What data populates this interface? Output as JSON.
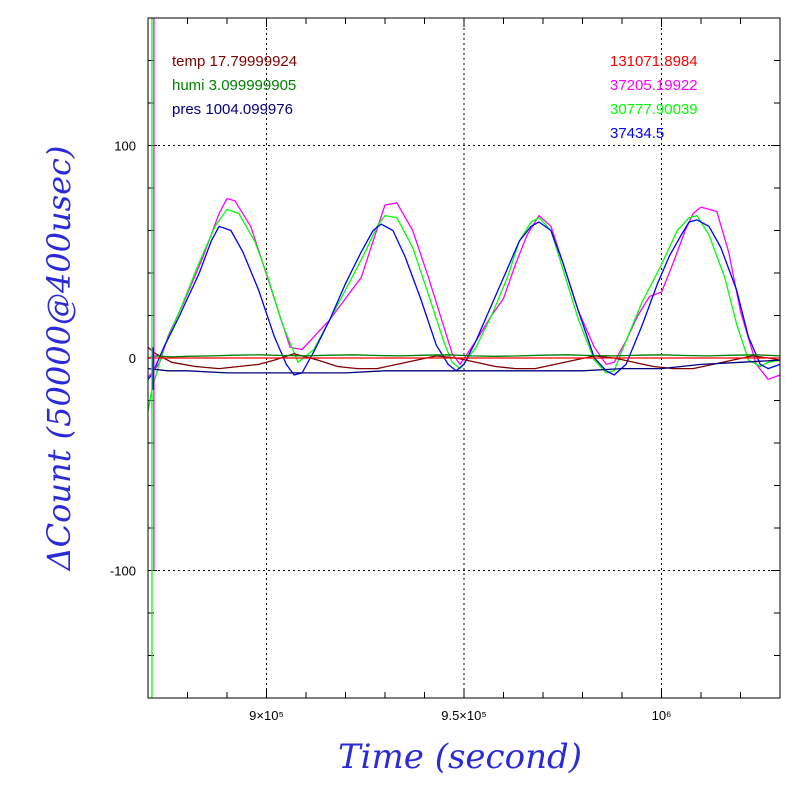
{
  "chart_data": {
    "type": "line",
    "xlabel": "Time (second)",
    "ylabel": "ΔCount (50000@400usec)",
    "xlim": [
      870000,
      1030000
    ],
    "ylim": [
      -160,
      160
    ],
    "grid": true,
    "x_ticks": [
      {
        "value": 900000,
        "label": "9×10⁵"
      },
      {
        "value": 950000,
        "label": "9.5×10⁵"
      },
      {
        "value": 1000000,
        "label": "10⁶"
      }
    ],
    "y_ticks": [
      {
        "value": 100,
        "label": "100"
      },
      {
        "value": 0,
        "label": "0"
      },
      {
        "value": -100,
        "label": "-100"
      }
    ],
    "legend_left": [
      {
        "label": "temp 17.79999924",
        "color": "#800000"
      },
      {
        "label": "humi 3.099999905",
        "color": "#008000"
      },
      {
        "label": "pres 1004.099976",
        "color": "#000080"
      }
    ],
    "legend_right": [
      {
        "label": "131071.8984",
        "color": "#ff0000"
      },
      {
        "label": "37205.19922",
        "color": "#ff00ff"
      },
      {
        "label": "30777.90039",
        "color": "#00ff00"
      },
      {
        "label": "37434.5",
        "color": "#0000ff"
      }
    ],
    "series": [
      {
        "color": "#ff00ff",
        "x": [
          870000,
          871000,
          873000,
          875000,
          879000,
          884000,
          888000,
          890000,
          892000,
          896000,
          899000,
          903000,
          906000,
          909000,
          912000,
          916000,
          920000,
          924000,
          927000,
          930000,
          933000,
          937000,
          941000,
          945000,
          947000,
          949000,
          953000,
          957000,
          960000,
          963000,
          966000,
          969000,
          972000,
          975000,
          979000,
          983000,
          986000,
          988000,
          991000,
          994000,
          997000,
          1000000,
          1003000,
          1006000,
          1008000,
          1010000,
          1014000,
          1017000,
          1020000,
          1024000,
          1027000,
          1030000
        ],
        "y": [
          -9,
          -7,
          -2,
          10,
          26,
          48,
          68,
          75,
          74,
          62,
          45,
          22,
          5,
          4,
          10,
          18,
          28,
          38,
          55,
          72,
          73,
          60,
          38,
          14,
          2,
          -3,
          8,
          20,
          28,
          44,
          58,
          67,
          62,
          45,
          22,
          5,
          -3,
          -2,
          8,
          20,
          29,
          31,
          45,
          60,
          68,
          71,
          69,
          50,
          22,
          -3,
          -10,
          -8
        ]
      },
      {
        "color": "#00ff00",
        "x": [
          870000,
          871000,
          874000,
          878000,
          883000,
          887000,
          890000,
          893000,
          897000,
          900000,
          904000,
          908000,
          912000,
          916000,
          920000,
          925000,
          928000,
          930000,
          933000,
          937000,
          941000,
          945000,
          947000,
          949000,
          953000,
          957000,
          961000,
          964000,
          967000,
          969000,
          972000,
          975000,
          979000,
          983000,
          986000,
          988000,
          991000,
          995000,
          1000000,
          1004000,
          1007000,
          1009000,
          1012000,
          1016000,
          1019000,
          1022000,
          1025000,
          1027000,
          1030000
        ],
        "y": [
          -25,
          -15,
          5,
          22,
          45,
          62,
          70,
          68,
          55,
          40,
          16,
          -2,
          4,
          18,
          32,
          50,
          62,
          67,
          66,
          52,
          30,
          7,
          -2,
          -5,
          5,
          20,
          38,
          55,
          64,
          66,
          60,
          42,
          18,
          -1,
          -7,
          -6,
          8,
          26,
          44,
          60,
          66,
          67,
          58,
          38,
          16,
          -1,
          -4,
          -2,
          -1
        ]
      },
      {
        "color": "#0000ff",
        "x": [
          870000,
          871000,
          874000,
          878000,
          883000,
          886000,
          888000,
          891000,
          894000,
          898000,
          902000,
          905000,
          907000,
          909000,
          912000,
          916000,
          920000,
          924000,
          927000,
          929000,
          932000,
          935000,
          939000,
          943000,
          946000,
          948000,
          950000,
          953000,
          957000,
          961000,
          964000,
          967000,
          969000,
          972000,
          975000,
          979000,
          983000,
          986000,
          988000,
          991000,
          995000,
          999000,
          1002000,
          1005000,
          1007000,
          1009000,
          1012000,
          1015000,
          1019000,
          1022000,
          1025000,
          1027000,
          1030000
        ],
        "y": [
          -10,
          -8,
          5,
          20,
          40,
          55,
          62,
          60,
          50,
          32,
          10,
          -3,
          -8,
          -7,
          3,
          18,
          35,
          50,
          60,
          63,
          60,
          48,
          28,
          6,
          -3,
          -6,
          -3,
          8,
          25,
          42,
          55,
          62,
          64,
          60,
          45,
          22,
          0,
          -6,
          -8,
          -3,
          15,
          35,
          48,
          58,
          64,
          65,
          62,
          52,
          32,
          10,
          -3,
          -5,
          -3
        ]
      },
      {
        "color": "#800000",
        "x": [
          870000,
          872000,
          876000,
          882000,
          888000,
          893000,
          898000,
          902000,
          907000,
          913000,
          918000,
          923000,
          928000,
          933000,
          938000,
          943000,
          948000,
          953000,
          958000,
          963000,
          968000,
          973000,
          978000,
          983000,
          988000,
          993000,
          998000,
          1003000,
          1008000,
          1013000,
          1018000,
          1023000,
          1027000,
          1030000
        ],
        "y": [
          5,
          2,
          -2,
          -4,
          -5,
          -4,
          -3,
          -1,
          2,
          -1,
          -4,
          -5,
          -5,
          -3,
          -1,
          1,
          0,
          -2,
          -4,
          -5,
          -5,
          -3,
          -1,
          1,
          0,
          -2,
          -4,
          -5,
          -5,
          -3,
          -1,
          1,
          0,
          -1
        ]
      },
      {
        "color": "#008000",
        "x": [
          870000,
          872000,
          876000,
          880000,
          886000,
          892000,
          898000,
          904000,
          910000,
          916000,
          922000,
          928000,
          934000,
          940000,
          946000,
          952000,
          958000,
          964000,
          970000,
          976000,
          982000,
          988000,
          994000,
          1000000,
          1006000,
          1012000,
          1018000,
          1024000,
          1030000
        ],
        "y": [
          0,
          1,
          0.5,
          0.8,
          1,
          1.3,
          1.5,
          1.2,
          1,
          1.3,
          1.5,
          1.2,
          1,
          1.3,
          1.5,
          1,
          0.8,
          1,
          1.3,
          1.5,
          1.2,
          1,
          1.3,
          1.5,
          1.2,
          1,
          1.3,
          1.5,
          1
        ]
      },
      {
        "color": "#000080",
        "x": [
          870000,
          875000,
          880000,
          890000,
          900000,
          910000,
          920000,
          930000,
          940000,
          950000,
          960000,
          970000,
          980000,
          990000,
          1000000,
          1010000,
          1020000,
          1030000
        ],
        "y": [
          -5,
          -6,
          -6,
          -7,
          -7,
          -7,
          -7,
          -6,
          -6,
          -6,
          -6,
          -6,
          -6,
          -5,
          -5,
          -3,
          -2,
          -1
        ]
      },
      {
        "color": "#ff0000",
        "x": [
          870000,
          1030000
        ],
        "y": [
          0,
          0
        ]
      }
    ]
  }
}
